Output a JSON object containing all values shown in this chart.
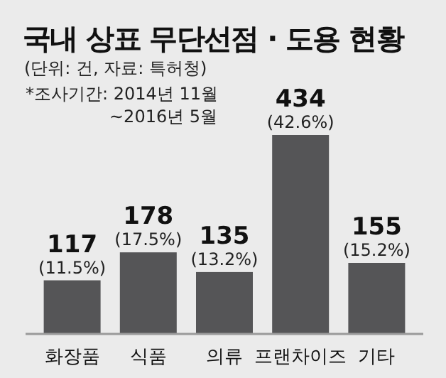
{
  "chart_data": {
    "type": "bar",
    "title": "국내 상표 무단선점 · 도용 현황",
    "subtitle": "(단위: 건, 자료: 특허청)",
    "annotations": [
      "*조사기간: 2014년 11월",
      "~2016년 5월"
    ],
    "categories": [
      "화장품",
      "식품",
      "의류",
      "프랜차이즈",
      "기타"
    ],
    "values": [
      117,
      178,
      135,
      434,
      155
    ],
    "value_labels": [
      "117 (11.5%)",
      "178 (17.5%)",
      "135 (13.2%)",
      "434 (42.6%)",
      "155 (15.2%)"
    ],
    "color": "#555557"
  }
}
